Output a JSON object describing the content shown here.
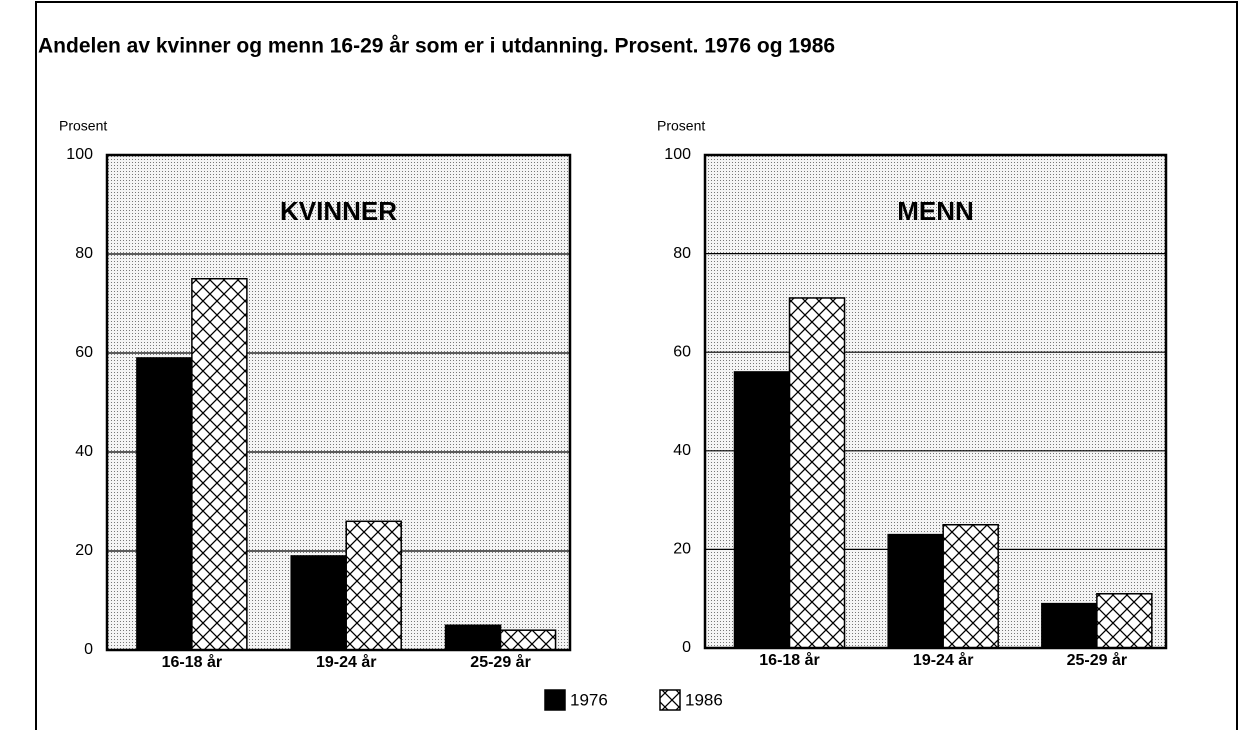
{
  "title": "Andelen av kvinner og menn 16-29 år som er i utdanning. Prosent. 1976 og 1986",
  "chart_data": [
    {
      "type": "bar",
      "annotation": "KVINNER",
      "ylabel": "Prosent",
      "categories": [
        "16-18 år",
        "19-24 år",
        "25-29 år"
      ],
      "series": [
        {
          "name": "1976",
          "color": "#000000",
          "hatch": "solid",
          "values": [
            59,
            19,
            5
          ]
        },
        {
          "name": "1986",
          "color": "#ffffff",
          "hatch": "crosshatch",
          "values": [
            75,
            26,
            4
          ]
        }
      ],
      "ylim": [
        0,
        100
      ],
      "yticks": [
        0,
        20,
        40,
        60,
        80,
        100
      ],
      "grid": true,
      "legend": "bottom"
    },
    {
      "type": "bar",
      "annotation": "MENN",
      "ylabel": "Prosent",
      "categories": [
        "16-18 år",
        "19-24 år",
        "25-29 år"
      ],
      "series": [
        {
          "name": "1976",
          "color": "#000000",
          "hatch": "solid",
          "values": [
            56,
            23,
            9
          ]
        },
        {
          "name": "1986",
          "color": "#ffffff",
          "hatch": "crosshatch",
          "values": [
            71,
            25,
            11
          ]
        }
      ],
      "ylim": [
        0,
        100
      ],
      "yticks": [
        0,
        20,
        40,
        60,
        80,
        100
      ],
      "grid": true
    }
  ]
}
